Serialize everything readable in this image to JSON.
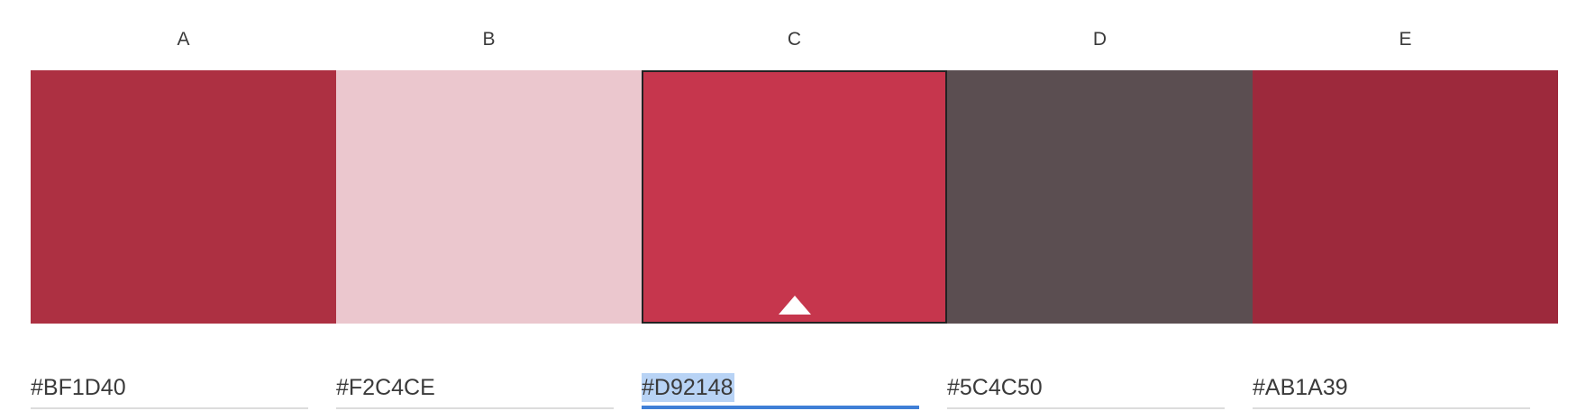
{
  "palette": {
    "selected_index": 2,
    "colors": [
      {
        "label": "A",
        "hex": "#BF1D40",
        "swatch": "#AD3042"
      },
      {
        "label": "B",
        "hex": "#F2C4CE",
        "swatch": "#EBC7CE"
      },
      {
        "label": "C",
        "hex": "#D92148",
        "swatch": "#C6364D"
      },
      {
        "label": "D",
        "hex": "#5C4C50",
        "swatch": "#5B4E51"
      },
      {
        "label": "E",
        "hex": "#AB1A39",
        "swatch": "#9D293C"
      }
    ]
  },
  "colors": {
    "focus_underline": "#3F7FD6",
    "text_selection": "#B8D3F5",
    "selected_border": "#222222",
    "marker": "#FFFFFF"
  },
  "icons": {
    "selected_marker": "triangle-up-icon"
  }
}
